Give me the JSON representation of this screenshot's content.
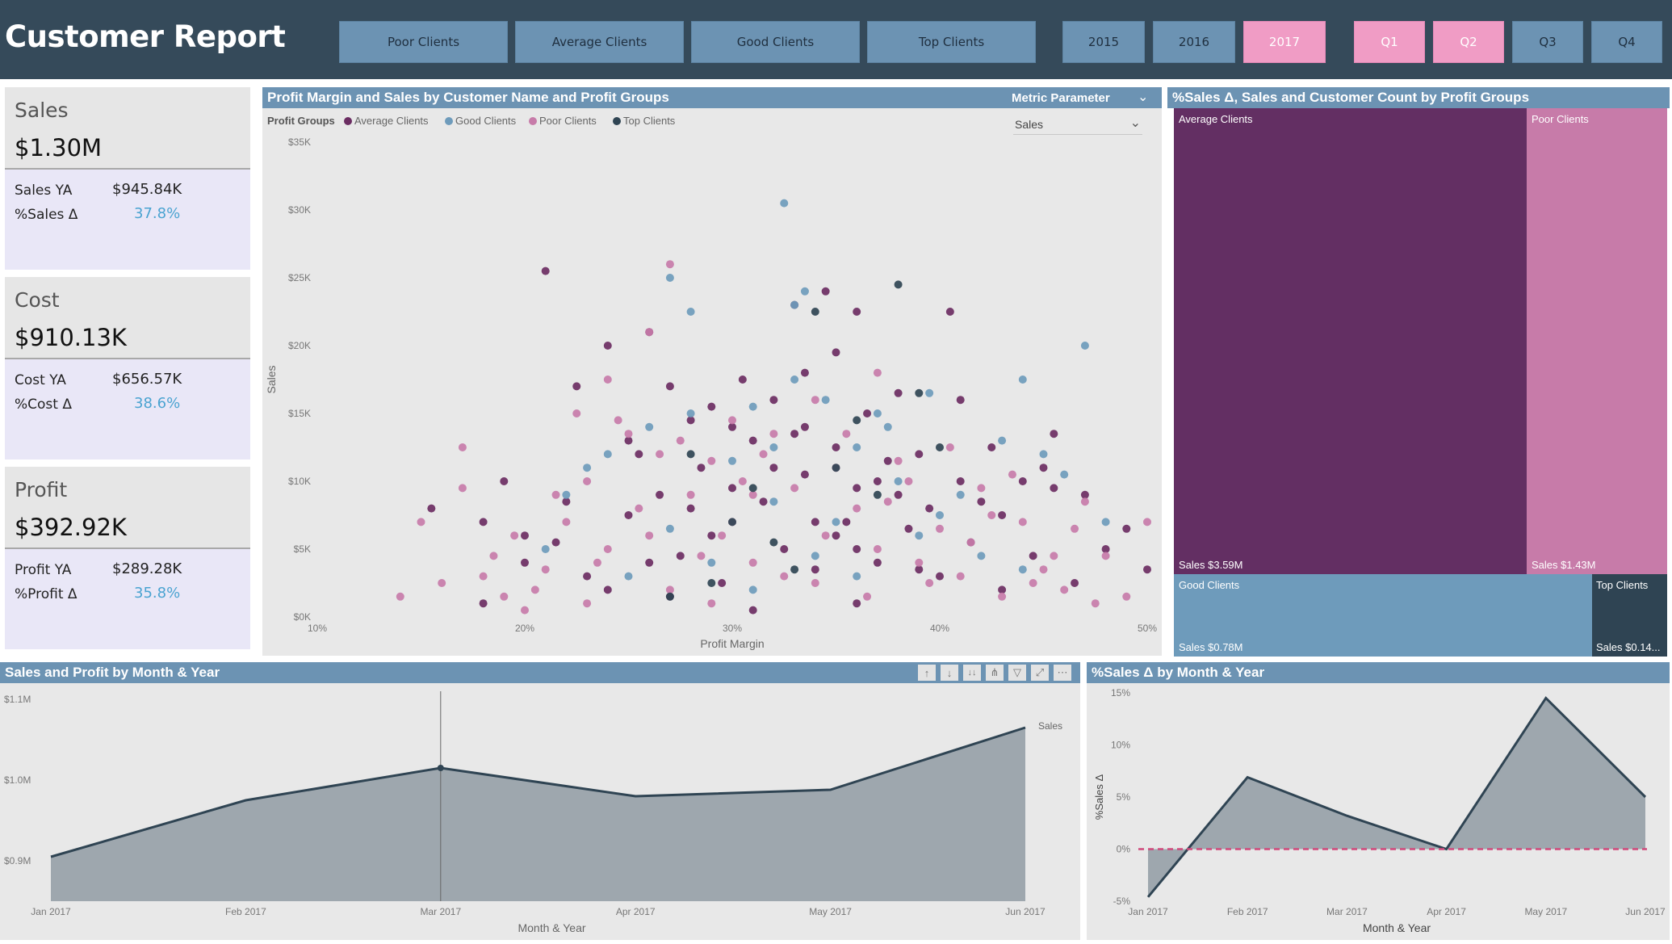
{
  "header": {
    "title": "Customer Report",
    "group_buttons": [
      "Poor Clients",
      "Average Clients",
      "Good Clients",
      "Top Clients"
    ],
    "year_buttons": [
      "2015",
      "2016",
      "2017"
    ],
    "quarter_buttons": [
      "Q1",
      "Q2",
      "Q3",
      "Q4"
    ],
    "selected": [
      "2017",
      "Q1",
      "Q2"
    ]
  },
  "kpis": {
    "sales": {
      "label": "Sales",
      "value": "$1.30M",
      "ya_label": "Sales YA",
      "ya_value": "$945.84K",
      "delta_label": "%Sales Δ",
      "delta_value": "37.8%"
    },
    "cost": {
      "label": "Cost",
      "value": "$910.13K",
      "ya_label": "Cost YA",
      "ya_value": "$656.57K",
      "delta_label": "%Cost Δ",
      "delta_value": "38.6%"
    },
    "profit": {
      "label": "Profit",
      "value": "$392.92K",
      "ya_label": "Profit YA",
      "ya_value": "$289.28K",
      "delta_label": "%Profit Δ",
      "delta_value": "35.8%"
    }
  },
  "scatter": {
    "title": "Profit Margin and Sales by Customer Name and Profit Groups",
    "parameter_label": "Metric Parameter",
    "parameter_value": "Sales",
    "legend_title": "Profit Groups",
    "legend": [
      "Average Clients",
      "Good Clients",
      "Poor Clients",
      "Top Clients"
    ],
    "colors": {
      "Average Clients": "#6b2d62",
      "Good Clients": "#6e9bbb",
      "Poor Clients": "#c77ba9",
      "Top Clients": "#2f4453"
    },
    "xlabel": "Profit Margin",
    "ylabel": "Sales",
    "x_ticks": [
      "10%",
      "20%",
      "30%",
      "40%",
      "50%"
    ],
    "y_ticks": [
      "$0K",
      "$5K",
      "$10K",
      "$15K",
      "$20K",
      "$25K",
      "$30K",
      "$35K"
    ]
  },
  "treemap": {
    "title": "%Sales Δ, Sales and Customer Count by Profit Groups",
    "tiles": [
      {
        "name": "Average Clients",
        "sales": "Sales $3.59M",
        "color": "#632f63"
      },
      {
        "name": "Poor Clients",
        "sales": "Sales $1.43M",
        "color": "#c77ba9"
      },
      {
        "name": "Good Clients",
        "sales": "Sales $0.78M",
        "color": "#6e9bbb"
      },
      {
        "name": "Top Clients",
        "sales": "Sales $0.14...",
        "color": "#2f4453"
      }
    ]
  },
  "area_sales": {
    "title": "Sales and Profit by Month & Year",
    "series_label": "Sales",
    "xlabel": "Month & Year",
    "y_ticks": [
      "$1.1M",
      "$1.0M",
      "$0.9M"
    ]
  },
  "area_delta": {
    "title": "%Sales Δ by Month & Year",
    "xlabel": "Month & Year",
    "ylabel": "%Sales Δ",
    "y_ticks": [
      "15%",
      "10%",
      "5%",
      "0%",
      "-5%"
    ]
  },
  "chart_data": [
    {
      "type": "area",
      "title": "Sales and Profit by Month & Year",
      "xlabel": "Month & Year",
      "ylabel": "",
      "categories": [
        "Jan 2017",
        "Feb 2017",
        "Mar 2017",
        "Apr 2017",
        "May 2017",
        "Jun 2017"
      ],
      "series": [
        {
          "name": "Sales",
          "values": [
            0.905,
            0.975,
            1.015,
            0.98,
            0.988,
            1.065
          ]
        }
      ],
      "ylim": [
        0.85,
        1.11
      ],
      "y_unit": "$M"
    },
    {
      "type": "area",
      "title": "%Sales Δ by Month & Year",
      "xlabel": "Month & Year",
      "ylabel": "%Sales Δ",
      "categories": [
        "Jan 2017",
        "Feb 2017",
        "Mar 2017",
        "Apr 2017",
        "May 2017",
        "Jun 2017"
      ],
      "series": [
        {
          "values": [
            -4.6,
            6.9,
            3.2,
            0.0,
            14.5,
            5.0
          ]
        }
      ],
      "ylim": [
        -5,
        15
      ],
      "reference_line": 0
    },
    {
      "type": "scatter",
      "title": "Profit Margin and Sales by Customer Name and Profit Groups",
      "xlabel": "Profit Margin",
      "ylabel": "Sales",
      "xlim": [
        0.1,
        0.5
      ],
      "ylim": [
        0,
        35000
      ],
      "series": [
        {
          "name": "Average Clients",
          "points": [
            [
              0.27,
              17000
            ],
            [
              0.28,
              14500
            ],
            [
              0.305,
              17500
            ],
            [
              0.32,
              16000
            ],
            [
              0.33,
              23000
            ],
            [
              0.345,
              24000
            ],
            [
              0.36,
              22500
            ],
            [
              0.38,
              16500
            ],
            [
              0.405,
              22500
            ],
            [
              0.21,
              25500
            ],
            [
              0.24,
              20000
            ],
            [
              0.35,
              19500
            ],
            [
              0.365,
              15000
            ],
            [
              0.41,
              16000
            ],
            [
              0.335,
              18000
            ],
            [
              0.225,
              17000
            ],
            [
              0.26,
              21000
            ],
            [
              0.39,
              12000
            ],
            [
              0.44,
              10000
            ],
            [
              0.455,
              13500
            ],
            [
              0.47,
              9000
            ],
            [
              0.49,
              6500
            ],
            [
              0.155,
              8000
            ],
            [
              0.18,
              7000
            ],
            [
              0.19,
              10000
            ],
            [
              0.2,
              4000
            ],
            [
              0.215,
              5500
            ],
            [
              0.23,
              3000
            ],
            [
              0.25,
              7500
            ],
            [
              0.255,
              12000
            ],
            [
              0.265,
              9000
            ],
            [
              0.275,
              4500
            ],
            [
              0.285,
              11000
            ],
            [
              0.29,
              6000
            ],
            [
              0.295,
              2500
            ],
            [
              0.31,
              13000
            ],
            [
              0.315,
              8500
            ],
            [
              0.325,
              5000
            ],
            [
              0.335,
              10500
            ],
            [
              0.34,
              3500
            ],
            [
              0.35,
              12500
            ],
            [
              0.355,
              7000
            ],
            [
              0.36,
              9500
            ],
            [
              0.37,
              4000
            ],
            [
              0.375,
              11500
            ],
            [
              0.385,
              6500
            ],
            [
              0.395,
              8000
            ],
            [
              0.4,
              3000
            ],
            [
              0.41,
              10000
            ],
            [
              0.415,
              5500
            ],
            [
              0.425,
              12500
            ],
            [
              0.43,
              7500
            ],
            [
              0.445,
              4500
            ],
            [
              0.455,
              9500
            ],
            [
              0.465,
              2500
            ],
            [
              0.28,
              8000
            ],
            [
              0.3,
              9500
            ],
            [
              0.32,
              11000
            ],
            [
              0.34,
              7000
            ],
            [
              0.36,
              5000
            ],
            [
              0.38,
              9000
            ],
            [
              0.42,
              8500
            ],
            [
              0.22,
              8500
            ],
            [
              0.24,
              2000
            ],
            [
              0.26,
              4000
            ],
            [
              0.18,
              1000
            ],
            [
              0.2,
              6000
            ],
            [
              0.3,
              14000
            ],
            [
              0.33,
              13500
            ],
            [
              0.35,
              6000
            ],
            [
              0.37,
              10000
            ],
            [
              0.39,
              3500
            ],
            [
              0.43,
              2000
            ],
            [
              0.45,
              11000
            ],
            [
              0.31,
              500
            ],
            [
              0.27,
              1500
            ],
            [
              0.25,
              13000
            ],
            [
              0.29,
              15500
            ],
            [
              0.335,
              14000
            ],
            [
              0.36,
              1000
            ],
            [
              0.48,
              5000
            ],
            [
              0.5,
              3500
            ]
          ]
        },
        {
          "name": "Good Clients",
          "points": [
            [
              0.325,
              30500
            ],
            [
              0.27,
              25000
            ],
            [
              0.28,
              22500
            ],
            [
              0.33,
              23000
            ],
            [
              0.335,
              24000
            ],
            [
              0.47,
              20000
            ],
            [
              0.44,
              17500
            ],
            [
              0.31,
              15500
            ],
            [
              0.345,
              16000
            ],
            [
              0.37,
              15000
            ],
            [
              0.43,
              13000
            ],
            [
              0.45,
              12000
            ],
            [
              0.46,
              10500
            ],
            [
              0.28,
              15000
            ],
            [
              0.26,
              14000
            ],
            [
              0.23,
              11000
            ],
            [
              0.22,
              9000
            ],
            [
              0.3,
              11500
            ],
            [
              0.32,
              8500
            ],
            [
              0.35,
              7000
            ],
            [
              0.36,
              12500
            ],
            [
              0.38,
              10000
            ],
            [
              0.39,
              6000
            ],
            [
              0.41,
              9000
            ],
            [
              0.42,
              4500
            ],
            [
              0.27,
              6500
            ],
            [
              0.25,
              3000
            ],
            [
              0.24,
              12000
            ],
            [
              0.29,
              4000
            ],
            [
              0.34,
              4500
            ],
            [
              0.4,
              7500
            ],
            [
              0.44,
              3500
            ],
            [
              0.36,
              3000
            ],
            [
              0.31,
              2000
            ],
            [
              0.33,
              17500
            ],
            [
              0.375,
              14000
            ],
            [
              0.21,
              5000
            ],
            [
              0.48,
              7000
            ],
            [
              0.32,
              12500
            ],
            [
              0.395,
              16500
            ]
          ]
        },
        {
          "name": "Poor Clients",
          "points": [
            [
              0.27,
              26000
            ],
            [
              0.26,
              21000
            ],
            [
              0.24,
              17500
            ],
            [
              0.25,
              13500
            ],
            [
              0.23,
              10000
            ],
            [
              0.22,
              7000
            ],
            [
              0.21,
              3500
            ],
            [
              0.2,
              500
            ],
            [
              0.17,
              12500
            ],
            [
              0.17,
              9500
            ],
            [
              0.15,
              7000
            ],
            [
              0.16,
              2500
            ],
            [
              0.14,
              1500
            ],
            [
              0.18,
              3000
            ],
            [
              0.19,
              1500
            ],
            [
              0.23,
              1000
            ],
            [
              0.24,
              5000
            ],
            [
              0.26,
              6000
            ],
            [
              0.27,
              2000
            ],
            [
              0.28,
              9000
            ],
            [
              0.29,
              11500
            ],
            [
              0.3,
              7000
            ],
            [
              0.31,
              4000
            ],
            [
              0.32,
              13500
            ],
            [
              0.33,
              9500
            ],
            [
              0.34,
              2500
            ],
            [
              0.35,
              11000
            ],
            [
              0.36,
              8000
            ],
            [
              0.37,
              5000
            ],
            [
              0.38,
              11500
            ],
            [
              0.39,
              4000
            ],
            [
              0.4,
              6500
            ],
            [
              0.41,
              3000
            ],
            [
              0.42,
              9500
            ],
            [
              0.43,
              1500
            ],
            [
              0.44,
              7000
            ],
            [
              0.45,
              3500
            ],
            [
              0.46,
              2000
            ],
            [
              0.47,
              8500
            ],
            [
              0.48,
              4500
            ],
            [
              0.49,
              1500
            ],
            [
              0.5,
              7000
            ],
            [
              0.225,
              15000
            ],
            [
              0.245,
              14500
            ],
            [
              0.265,
              12000
            ],
            [
              0.275,
              13000
            ],
            [
              0.285,
              4500
            ],
            [
              0.295,
              6000
            ],
            [
              0.305,
              10000
            ],
            [
              0.315,
              12000
            ],
            [
              0.325,
              3000
            ],
            [
              0.345,
              6000
            ],
            [
              0.355,
              13500
            ],
            [
              0.365,
              1500
            ],
            [
              0.375,
              8500
            ],
            [
              0.385,
              10000
            ],
            [
              0.395,
              2500
            ],
            [
              0.405,
              12500
            ],
            [
              0.415,
              5500
            ],
            [
              0.425,
              7500
            ],
            [
              0.435,
              10500
            ],
            [
              0.445,
              2500
            ],
            [
              0.455,
              4500
            ],
            [
              0.465,
              6500
            ],
            [
              0.475,
              1000
            ],
            [
              0.255,
              8000
            ],
            [
              0.235,
              4000
            ],
            [
              0.215,
              9000
            ],
            [
              0.195,
              6000
            ],
            [
              0.185,
              4500
            ],
            [
              0.205,
              2000
            ],
            [
              0.3,
              14500
            ],
            [
              0.34,
              16000
            ],
            [
              0.37,
              18000
            ],
            [
              0.31,
              9000
            ],
            [
              0.29,
              1000
            ]
          ]
        },
        {
          "name": "Top Clients",
          "points": [
            [
              0.38,
              24500
            ],
            [
              0.39,
              16500
            ],
            [
              0.36,
              14500
            ],
            [
              0.29,
              2500
            ],
            [
              0.32,
              5500
            ],
            [
              0.35,
              11000
            ],
            [
              0.28,
              12000
            ],
            [
              0.34,
              22500
            ],
            [
              0.4,
              12500
            ],
            [
              0.3,
              7000
            ],
            [
              0.37,
              9000
            ],
            [
              0.27,
              1500
            ],
            [
              0.31,
              9500
            ],
            [
              0.33,
              3500
            ]
          ]
        }
      ]
    }
  ]
}
